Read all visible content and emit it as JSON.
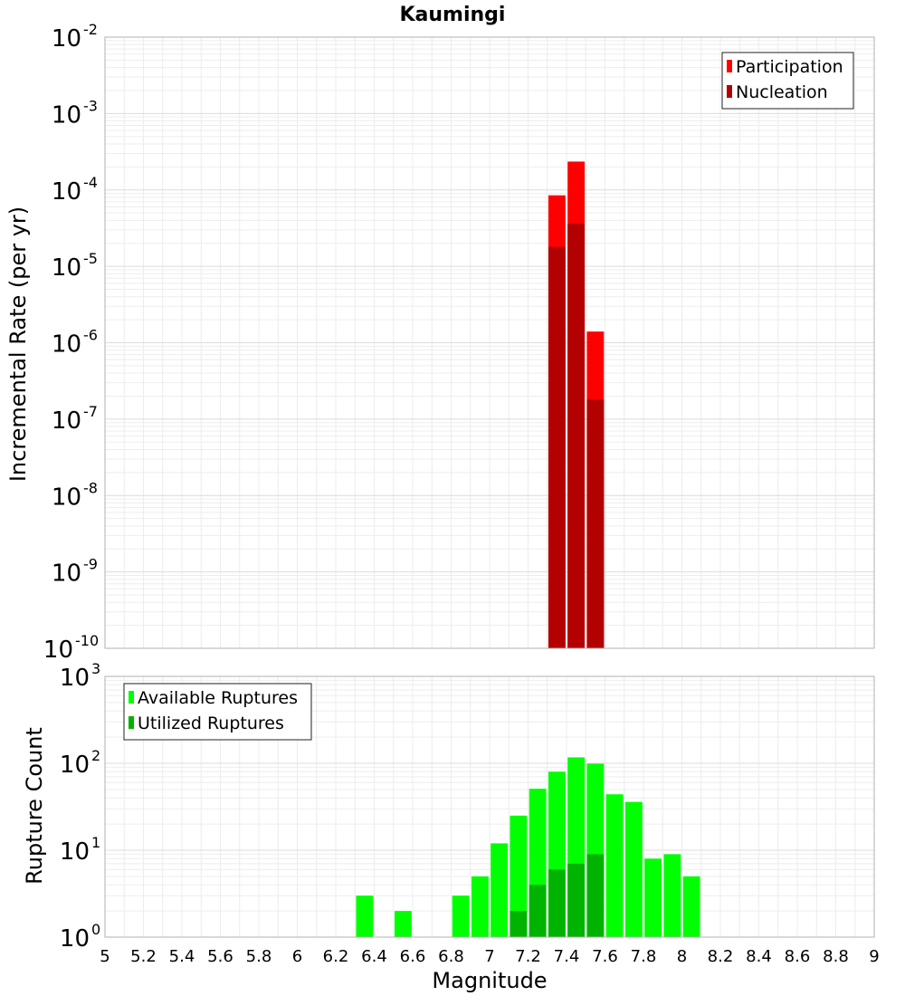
{
  "title": "Kaumingi",
  "chart_data": [
    {
      "type": "bar",
      "scale": "log",
      "ylabel": "Incremental Rate (per yr)",
      "ylim_exponents": [
        -10,
        -2
      ],
      "xlim": [
        5,
        9
      ],
      "bin_width": 0.1,
      "grid": true,
      "legend_position": "top-right",
      "series": [
        {
          "name": "Participation",
          "color": "#ff0000",
          "points": [
            {
              "x": 7.35,
              "y": 8.5e-05
            },
            {
              "x": 7.45,
              "y": 0.000235
            },
            {
              "x": 7.55,
              "y": 1.4e-06
            }
          ]
        },
        {
          "name": "Nucleation",
          "color": "#b30000",
          "points": [
            {
              "x": 7.35,
              "y": 1.8e-05
            },
            {
              "x": 7.45,
              "y": 3.6e-05
            },
            {
              "x": 7.55,
              "y": 1.8e-07
            }
          ]
        }
      ]
    },
    {
      "type": "bar",
      "scale": "log",
      "ylabel": "Rupture Count",
      "xlabel": "Magnitude",
      "ylim_exponents": [
        0,
        3
      ],
      "xlim": [
        5,
        9
      ],
      "bin_width": 0.1,
      "grid": true,
      "legend_position": "top-left",
      "xticks": [
        "5",
        "5.2",
        "5.4",
        "5.6",
        "5.8",
        "6",
        "6.2",
        "6.4",
        "6.6",
        "6.8",
        "7",
        "7.2",
        "7.4",
        "7.6",
        "7.8",
        "8",
        "8.2",
        "8.4",
        "8.6",
        "8.8",
        "9"
      ],
      "series": [
        {
          "name": "Available Ruptures",
          "color": "#00ff00",
          "points": [
            {
              "x": 6.35,
              "y": 3
            },
            {
              "x": 6.55,
              "y": 2
            },
            {
              "x": 6.65,
              "y": 1
            },
            {
              "x": 6.85,
              "y": 3
            },
            {
              "x": 6.95,
              "y": 5
            },
            {
              "x": 7.05,
              "y": 12
            },
            {
              "x": 7.15,
              "y": 25
            },
            {
              "x": 7.25,
              "y": 51
            },
            {
              "x": 7.35,
              "y": 80
            },
            {
              "x": 7.45,
              "y": 117
            },
            {
              "x": 7.55,
              "y": 99
            },
            {
              "x": 7.65,
              "y": 44
            },
            {
              "x": 7.75,
              "y": 36
            },
            {
              "x": 7.85,
              "y": 8
            },
            {
              "x": 7.95,
              "y": 9
            },
            {
              "x": 8.05,
              "y": 5
            }
          ]
        },
        {
          "name": "Utilized Ruptures",
          "color": "#00b300",
          "points": [
            {
              "x": 7.05,
              "y": 1
            },
            {
              "x": 7.15,
              "y": 2
            },
            {
              "x": 7.25,
              "y": 4
            },
            {
              "x": 7.35,
              "y": 6
            },
            {
              "x": 7.45,
              "y": 7
            },
            {
              "x": 7.55,
              "y": 9
            }
          ]
        }
      ]
    }
  ]
}
